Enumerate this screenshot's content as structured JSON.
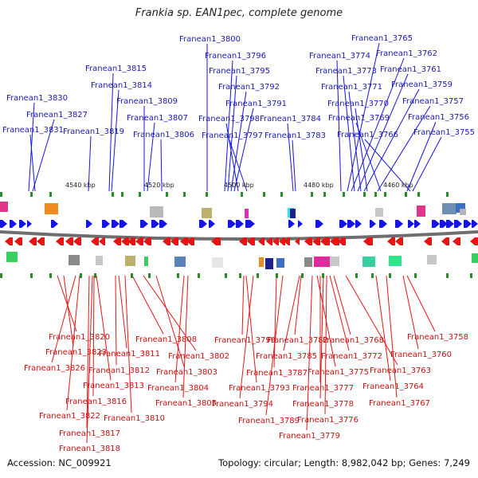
{
  "title": "Frankia sp. EAN1pec, complete genome",
  "footer": {
    "accession_label": "Accession:",
    "accession": "NC_009921",
    "topology_label": "Topology:",
    "topology": "circular",
    "length_label": "Length:",
    "length": "8,982,042 bp",
    "genes_label": "Genes:",
    "genes": "7,249"
  },
  "ruler_labels": [
    "4540 kbp",
    "4520 kbp",
    "4500 kbp",
    "4480 kbp",
    "4460 kbp"
  ],
  "colors": {
    "top_label": "#1a1ab0",
    "bottom_label": "#c81010",
    "forward_gene": "#1414e6",
    "reverse_gene": "#e61414",
    "backbone": "#6e6e6e"
  },
  "top_genes": [
    "Franean1_3800",
    "Franean1_3796",
    "Franean1_3795",
    "Franean1_3792",
    "Franean1_3791",
    "Franean1_3798",
    "Franean1_3797",
    "Franean1_3784",
    "Franean1_3783",
    "Franean1_3815",
    "Franean1_3814",
    "Franean1_3809",
    "Franean1_3807",
    "Franean1_3806",
    "Franean1_3830",
    "Franean1_3827",
    "Franean1_3831",
    "Franean1_3819",
    "Franean1_3765",
    "Franean1_3774",
    "Franean1_3762",
    "Franean1_3773",
    "Franean1_3761",
    "Franean1_3771",
    "Franean1_3759",
    "Franean1_3770",
    "Franean1_3757",
    "Franean1_3769",
    "Franean1_3756",
    "Franean1_3766",
    "Franean1_3755"
  ],
  "bottom_genes": [
    "Franean1_3820",
    "Franean1_3823",
    "Franean1_3826",
    "Franean1_3822",
    "Franean1_3817",
    "Franean1_3818",
    "Franean1_3816",
    "Franean1_3813",
    "Franean1_3812",
    "Franean1_3811",
    "Franean1_3810",
    "Franean1_3808",
    "Franean1_3802",
    "Franean1_3803",
    "Franean1_3804",
    "Franean1_3805",
    "Franean1_3799",
    "Franean1_3793",
    "Franean1_3794",
    "Franean1_3787",
    "Franean1_3789",
    "Franean1_3785",
    "Franean1_3782",
    "Franean1_3779",
    "Franean1_3775",
    "Franean1_3777",
    "Franean1_3778",
    "Franean1_3776",
    "Franean1_3772",
    "Franean1_3768",
    "Franean1_3763",
    "Franean1_3764",
    "Franean1_3767",
    "Franean1_3760",
    "Franean1_3758"
  ]
}
